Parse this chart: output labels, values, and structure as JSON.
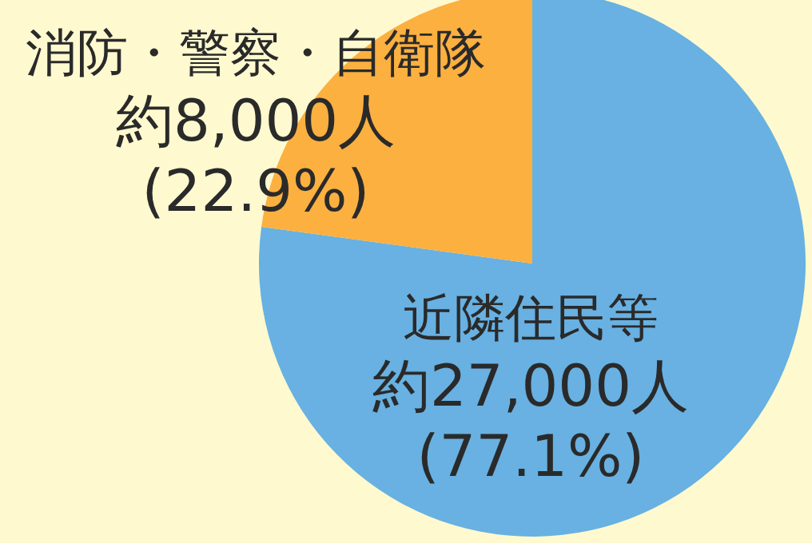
{
  "chart_data": {
    "type": "pie",
    "categories": [
      "近隣住民等",
      "消防・警察・自衛隊"
    ],
    "values": [
      27000,
      8000
    ],
    "colors": [
      "#68b1e2",
      "#fbb040"
    ],
    "value_labels": [
      "約27,000人\n(77.1%)",
      "約8,000人\n(22.9%)"
    ]
  }
}
